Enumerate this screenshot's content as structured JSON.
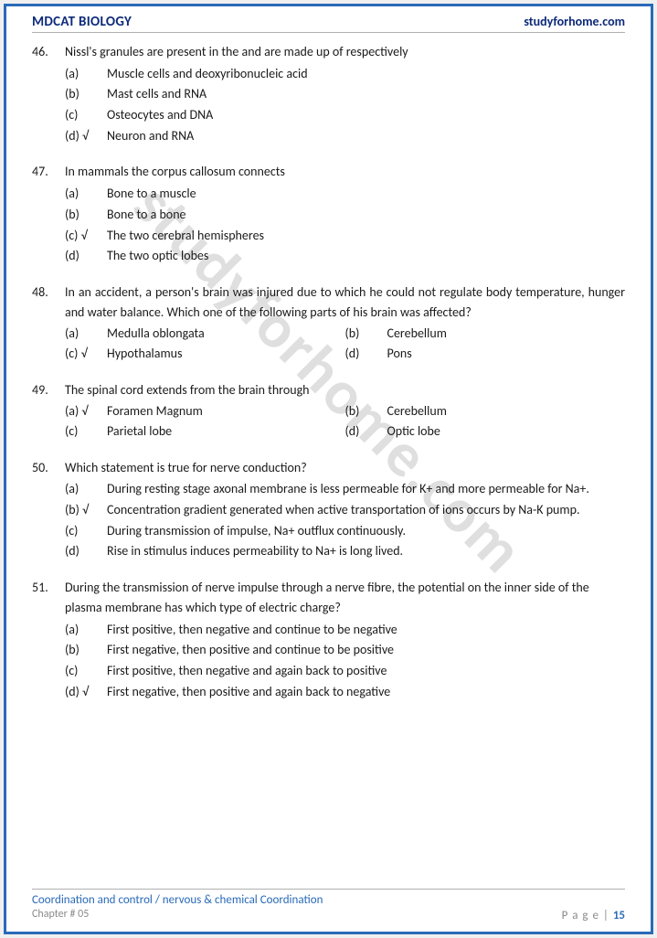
{
  "header": {
    "left": "MDCAT BIOLOGY",
    "right": "studyforhome.com"
  },
  "watermark": "studyforhome.com",
  "questions": [
    {
      "num": "46.",
      "text": "Nissl's granules are present in the and are made up of respectively",
      "layout": "list",
      "options": [
        {
          "label": "(a)",
          "text": "Muscle cells and deoxyribonucleic acid"
        },
        {
          "label": "(b)",
          "text": "Mast cells and RNA"
        },
        {
          "label": "(c)",
          "text": "Osteocytes and DNA"
        },
        {
          "label": "(d) √",
          "text": "Neuron and RNA"
        }
      ]
    },
    {
      "num": "47.",
      "text": "In mammals the corpus callosum connects",
      "layout": "list",
      "options": [
        {
          "label": "(a)",
          "text": "Bone to a muscle"
        },
        {
          "label": "(b)",
          "text": "Bone to a bone"
        },
        {
          "label": "(c) √",
          "text": "The two cerebral hemispheres"
        },
        {
          "label": "(d)",
          "text": "The two optic lobes"
        }
      ]
    },
    {
      "num": "48.",
      "text": "In an accident, a person's brain was injured due to which he could not regulate body temperature, hunger and water balance. Which one of the following parts of his brain was affected?",
      "justify": true,
      "layout": "grid",
      "rows": [
        [
          {
            "label": "(a)",
            "text": "Medulla oblongata"
          },
          {
            "label": "(b)",
            "text": "Cerebellum"
          }
        ],
        [
          {
            "label": "(c) √",
            "text": "Hypothalamus"
          },
          {
            "label": "(d)",
            "text": "Pons"
          }
        ]
      ]
    },
    {
      "num": "49.",
      "text": "The spinal cord extends from the brain through",
      "layout": "grid",
      "rows": [
        [
          {
            "label": "(a) √",
            "text": "Foramen Magnum"
          },
          {
            "label": "(b)",
            "text": "Cerebellum"
          }
        ],
        [
          {
            "label": "(c)",
            "text": "Parietal lobe"
          },
          {
            "label": "(d)",
            "text": "Optic lobe"
          }
        ]
      ]
    },
    {
      "num": "50.",
      "text": "Which statement is true for nerve conduction?",
      "layout": "list",
      "options": [
        {
          "label": "(a)",
          "text": "During resting stage axonal membrane is less permeable for K+ and more permeable for Na+."
        },
        {
          "label": "(b) √",
          "text": "Concentration gradient generated when active transportation of ions occurs by Na-K pump."
        },
        {
          "label": "(c)",
          "text": "During transmission of impulse, Na+ outflux continuously."
        },
        {
          "label": "(d)",
          "text": "Rise in stimulus induces permeability to Na+ is long lived."
        }
      ]
    },
    {
      "num": "51.",
      "text": "During the transmission of nerve impulse through a nerve fibre, the potential on the inner side of the plasma membrane has which type of electric charge?",
      "layout": "list",
      "options": [
        {
          "label": "(a)",
          "text": "First positive, then negative and continue to be negative"
        },
        {
          "label": "(b)",
          "text": "First negative, then positive and continue to be positive"
        },
        {
          "label": "(c)",
          "text": "First positive, then negative and again back to positive"
        },
        {
          "label": "(d) √",
          "text": "First negative, then positive and again back to negative"
        }
      ]
    }
  ],
  "footer": {
    "topic": "Coordination and control / nervous & chemical Coordination",
    "chapter": "Chapter # 05",
    "page_label": "P a g e  | ",
    "page_num": "15"
  }
}
